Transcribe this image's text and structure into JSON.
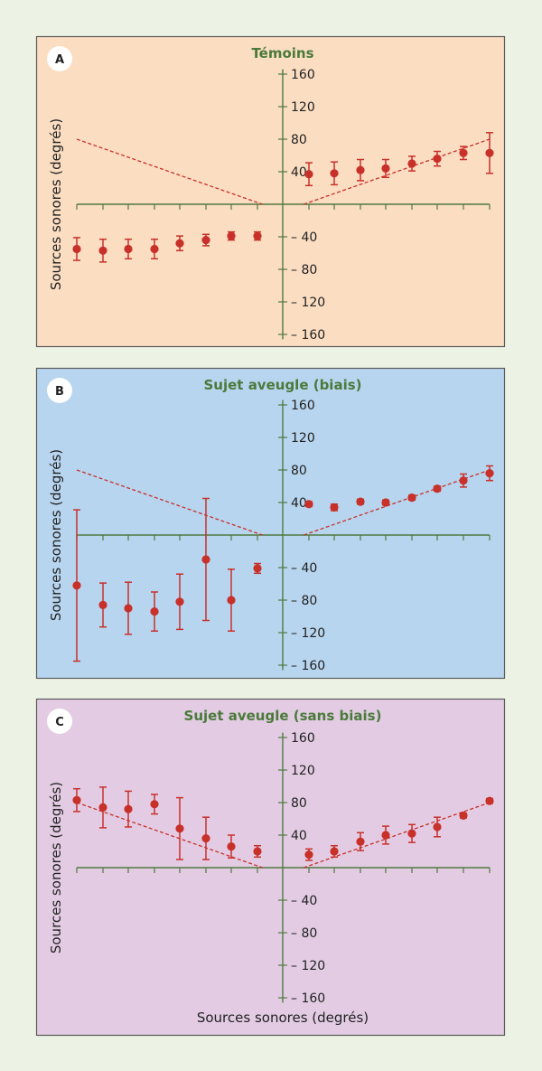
{
  "figure": {
    "x_axis_label": "Sources sonores (degrés)"
  },
  "chart_data": [
    {
      "type": "scatter",
      "panel_label": "A",
      "title": "Témoins",
      "ylabel": "Sources sonores (degrés)",
      "ylim": [
        -180,
        180
      ],
      "y_ticks": [
        160,
        120,
        80,
        40,
        -40,
        -80,
        -120,
        -160
      ],
      "y_tick_labels": [
        "160",
        "120",
        "80",
        "40",
        "– 40",
        "– 80",
        "– 120",
        "– 160"
      ],
      "colors": {
        "background": "#fbddc2",
        "border": "#5a5a5a",
        "axis": "#4f7a3f",
        "points": "#c8302a",
        "reference": "#c8302a"
      },
      "x": [
        -8,
        -7,
        -6,
        -5,
        -4,
        -3,
        -2,
        -1,
        1,
        2,
        3,
        4,
        5,
        6,
        7,
        8
      ],
      "series": [
        {
          "values": [
            -55,
            -57,
            -55,
            -55,
            -48,
            -44,
            -39,
            -39,
            37,
            38,
            42,
            44,
            50,
            56,
            63,
            63
          ],
          "error": [
            14,
            14,
            12,
            12,
            9,
            7,
            5,
            5,
            14,
            14,
            13,
            11,
            9,
            9,
            8,
            25
          ]
        }
      ],
      "reference_lines": [
        {
          "from": [
            -8,
            80
          ],
          "to": [
            -0.8,
            0
          ]
        },
        {
          "from": [
            0.8,
            0
          ],
          "to": [
            8,
            80
          ]
        }
      ]
    },
    {
      "type": "scatter",
      "panel_label": "B",
      "title": "Sujet aveugle (biais)",
      "ylabel": "Sources sonores (degrés)",
      "ylim": [
        -180,
        180
      ],
      "y_ticks": [
        160,
        120,
        80,
        40,
        -40,
        -80,
        -120,
        -160
      ],
      "y_tick_labels": [
        "160",
        "120",
        "80",
        "40",
        "– 40",
        "– 80",
        "– 120",
        "– 160"
      ],
      "colors": {
        "background": "#b7d5ef",
        "border": "#5a5a5a",
        "axis": "#4f7a3f",
        "points": "#c8302a",
        "reference": "#c8302a"
      },
      "x": [
        -8,
        -7,
        -6,
        -5,
        -4,
        -3,
        -2,
        -1,
        1,
        2,
        3,
        4,
        5,
        6,
        7,
        8
      ],
      "series": [
        {
          "values": [
            -62,
            -86,
            -90,
            -94,
            -82,
            -30,
            -80,
            -41,
            38,
            34,
            41,
            40,
            46,
            57,
            67,
            76
          ],
          "error": [
            93,
            27,
            32,
            24,
            34,
            75,
            38,
            6,
            3,
            4,
            3,
            3,
            3,
            3,
            8,
            9
          ]
        }
      ],
      "reference_lines": [
        {
          "from": [
            -8,
            80
          ],
          "to": [
            -0.8,
            0
          ]
        },
        {
          "from": [
            0.8,
            0
          ],
          "to": [
            8,
            80
          ]
        }
      ]
    },
    {
      "type": "scatter",
      "panel_label": "C",
      "title": "Sujet aveugle (sans biais)",
      "ylabel": "Sources sonores (degrés)",
      "ylim": [
        -180,
        180
      ],
      "y_ticks": [
        160,
        120,
        80,
        40,
        -40,
        -80,
        -120,
        -160
      ],
      "y_tick_labels": [
        "160",
        "120",
        "80",
        "40",
        "– 40",
        "– 80",
        "– 120",
        "– 160"
      ],
      "colors": {
        "background": "#e3cce3",
        "border": "#5a5a5a",
        "axis": "#4f7a3f",
        "points": "#c8302a",
        "reference": "#c8302a"
      },
      "x": [
        -8,
        -7,
        -6,
        -5,
        -4,
        -3,
        -2,
        -1,
        1,
        2,
        3,
        4,
        5,
        6,
        7,
        8
      ],
      "series": [
        {
          "values": [
            83,
            74,
            72,
            78,
            48,
            36,
            26,
            20,
            16,
            20,
            32,
            40,
            42,
            50,
            64,
            82
          ],
          "error": [
            14,
            25,
            22,
            12,
            38,
            26,
            14,
            7,
            7,
            7,
            11,
            11,
            11,
            12,
            3,
            3
          ]
        }
      ],
      "reference_lines": [
        {
          "from": [
            -8,
            80
          ],
          "to": [
            -0.8,
            0
          ]
        },
        {
          "from": [
            0.8,
            0
          ],
          "to": [
            8,
            80
          ]
        }
      ]
    }
  ]
}
